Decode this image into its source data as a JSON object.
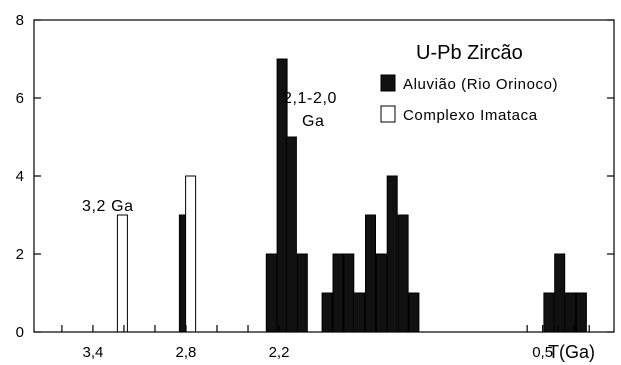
{
  "chart_data": {
    "type": "bar",
    "title": "",
    "xlabel": "T(Ga)",
    "ylabel": "",
    "x_axis": "age in Ga, decreasing to the right",
    "xlim": [
      3.78,
      0.04
    ],
    "ylim": [
      0,
      8
    ],
    "y_ticks": [
      0,
      2,
      4,
      6,
      8
    ],
    "x_tick_labels": [
      {
        "value": 3.4,
        "label": "3,4"
      },
      {
        "value": 2.8,
        "label": "2,8"
      },
      {
        "value": 2.2,
        "label": "2,2"
      },
      {
        "value": 0.5,
        "label": "0,5"
      }
    ],
    "x_minor_ticks": [
      3.6,
      3.4,
      3.2,
      3.0,
      2.8,
      2.6,
      2.4,
      2.2,
      0.6,
      0.5,
      0.4,
      0.3,
      0.2
    ],
    "legend": {
      "title": "U-Pb Zircão",
      "position": "top-right",
      "entries": [
        {
          "label": "Aluvião (Rio Orinoco)",
          "series": "aluviao"
        },
        {
          "label": "Complexo Imataca",
          "series": "imataca"
        }
      ]
    },
    "annotations": [
      {
        "text": "3,2 Ga",
        "near": 3.21
      },
      {
        "text": "2,1-2,0",
        "near": 2.16
      },
      {
        "text": "Ga",
        "near": 2.16
      }
    ],
    "series": [
      {
        "name": "Aluvião (Rio Orinoco)",
        "key": "aluviao",
        "fill": "#111111",
        "bars": [
          {
            "x": 2.81,
            "value": 3
          },
          {
            "x": 2.25,
            "value": 2
          },
          {
            "x": 2.18,
            "value": 7
          },
          {
            "x": 2.12,
            "value": 5
          },
          {
            "x": 2.05,
            "value": 2
          },
          {
            "x": 1.89,
            "value": 1
          },
          {
            "x": 1.82,
            "value": 2
          },
          {
            "x": 1.75,
            "value": 2
          },
          {
            "x": 1.68,
            "value": 1
          },
          {
            "x": 1.61,
            "value": 3
          },
          {
            "x": 1.54,
            "value": 2
          },
          {
            "x": 1.47,
            "value": 4
          },
          {
            "x": 1.4,
            "value": 3
          },
          {
            "x": 1.33,
            "value": 1
          },
          {
            "x": 0.46,
            "value": 1
          },
          {
            "x": 0.39,
            "value": 2
          },
          {
            "x": 0.32,
            "value": 1
          },
          {
            "x": 0.25,
            "value": 1
          }
        ]
      },
      {
        "name": "Complexo Imataca",
        "key": "imataca",
        "fill": "#ffffff",
        "bars": [
          {
            "x": 3.21,
            "value": 3
          },
          {
            "x": 2.77,
            "value": 4
          }
        ]
      }
    ]
  }
}
